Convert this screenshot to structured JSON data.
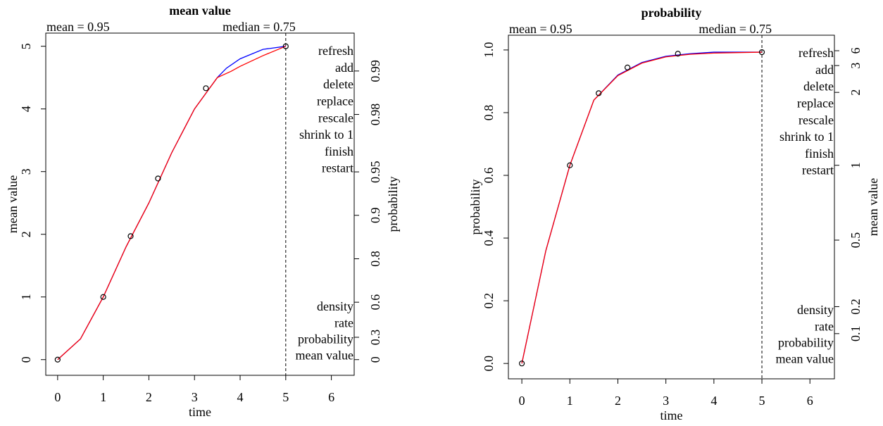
{
  "chart_data": [
    {
      "type": "line",
      "title": "mean value",
      "xlabel": "time",
      "ylabel": "mean value",
      "y2label": "probability",
      "annotations": [
        "mean = 0.95",
        "median = 0.75"
      ],
      "xlim": [
        -0.26,
        6.5
      ],
      "ylim": [
        -0.25,
        5.21
      ],
      "xticks": [
        0,
        1,
        2,
        3,
        4,
        5,
        6
      ],
      "yticks": [
        0,
        1,
        2,
        3,
        4,
        5
      ],
      "y2ticks": [
        0,
        0.3,
        0.6,
        0.8,
        0.9,
        0.95,
        0.98,
        0.99
      ],
      "y2_transform": "-log(1-p)",
      "vline": 5,
      "series": [
        {
          "style": "line",
          "color": "#0000ff",
          "x": [
            0,
            0.5,
            1,
            1.5,
            2,
            2.5,
            3,
            3.5,
            3.7,
            4,
            4.5,
            5
          ],
          "values": [
            0,
            0.33,
            1,
            1.8,
            2.5,
            3.3,
            4.0,
            4.5,
            4.65,
            4.8,
            4.95,
            5
          ]
        },
        {
          "style": "line",
          "color": "#ff0000",
          "x": [
            0,
            0.5,
            1,
            1.5,
            2,
            2.5,
            3,
            3.5,
            3.8,
            4,
            4.5,
            5
          ],
          "values": [
            0,
            0.33,
            1,
            1.8,
            2.5,
            3.3,
            4.0,
            4.5,
            4.6,
            4.68,
            4.85,
            5
          ]
        },
        {
          "style": "points",
          "color": "#000000",
          "x": [
            0,
            1,
            1.6,
            2.2,
            3.25,
            5
          ],
          "values": [
            0,
            1,
            1.97,
            2.89,
            4.33,
            5
          ]
        }
      ],
      "menu": [
        {
          "label": "refresh",
          "color": "#000000"
        },
        {
          "label": "add",
          "color": "#000000"
        },
        {
          "label": "delete",
          "color": "#000000"
        },
        {
          "label": "replace",
          "color": "#00ff00"
        },
        {
          "label": "rescale",
          "color": "#000000"
        },
        {
          "label": "shrink to 1",
          "color": "#000000"
        },
        {
          "label": "finish",
          "color": "#000000"
        },
        {
          "label": "restart",
          "color": "#000000"
        }
      ],
      "plot_menu": [
        {
          "label": "density",
          "color": "#000000"
        },
        {
          "label": "rate",
          "color": "#000000"
        },
        {
          "label": "probability",
          "color": "#000000"
        },
        {
          "label": "mean value",
          "color": "#00ff00"
        }
      ]
    },
    {
      "type": "line",
      "title": "probability",
      "xlabel": "time",
      "ylabel": "probability",
      "y2label": "mean value",
      "annotations": [
        "mean = 0.95",
        "median = 0.75"
      ],
      "xlim": [
        -0.28,
        6.51
      ],
      "ylim": [
        -0.049,
        1.047
      ],
      "xticks": [
        0,
        1,
        2,
        3,
        4,
        5,
        6
      ],
      "yticks": [
        {
          "value": 0,
          "label": "0.0"
        },
        0.2,
        0.4,
        0.6,
        0.8,
        {
          "value": 1,
          "label": "1.0"
        }
      ],
      "y2ticks": [
        0.1,
        0.2,
        0.5,
        1,
        2,
        3,
        6
      ],
      "y2_transform": "1-exp(-m)",
      "vline": 5,
      "series": [
        {
          "style": "line",
          "color": "#0000ff",
          "x": [
            0,
            0.5,
            1,
            1.5,
            2,
            2.5,
            3,
            3.5,
            4,
            5
          ],
          "values": [
            0,
            0.36,
            0.632,
            0.84,
            0.92,
            0.96,
            0.98,
            0.988,
            0.993,
            0.993
          ]
        },
        {
          "style": "line",
          "color": "#ff0000",
          "x": [
            0,
            0.5,
            1,
            1.5,
            2,
            2.5,
            3,
            3.5,
            4,
            5
          ],
          "values": [
            0,
            0.36,
            0.632,
            0.84,
            0.918,
            0.958,
            0.978,
            0.986,
            0.99,
            0.993
          ]
        },
        {
          "style": "points",
          "color": "#000000",
          "x": [
            0,
            1,
            1.6,
            2.2,
            3.25,
            5
          ],
          "values": [
            0,
            0.632,
            0.862,
            0.944,
            0.988,
            0.993
          ]
        }
      ],
      "menu": [
        {
          "label": "refresh",
          "color": "#000000"
        },
        {
          "label": "add",
          "color": "#000000"
        },
        {
          "label": "delete",
          "color": "#000000"
        },
        {
          "label": "replace",
          "color": "#00ff00"
        },
        {
          "label": "rescale",
          "color": "#000000"
        },
        {
          "label": "shrink to 1",
          "color": "#000000"
        },
        {
          "label": "finish",
          "color": "#000000"
        },
        {
          "label": "restart",
          "color": "#000000"
        }
      ],
      "plot_menu": [
        {
          "label": "density",
          "color": "#000000"
        },
        {
          "label": "rate",
          "color": "#000000"
        },
        {
          "label": "probability",
          "color": "#00ff00"
        },
        {
          "label": "mean value",
          "color": "#000000"
        }
      ]
    }
  ]
}
